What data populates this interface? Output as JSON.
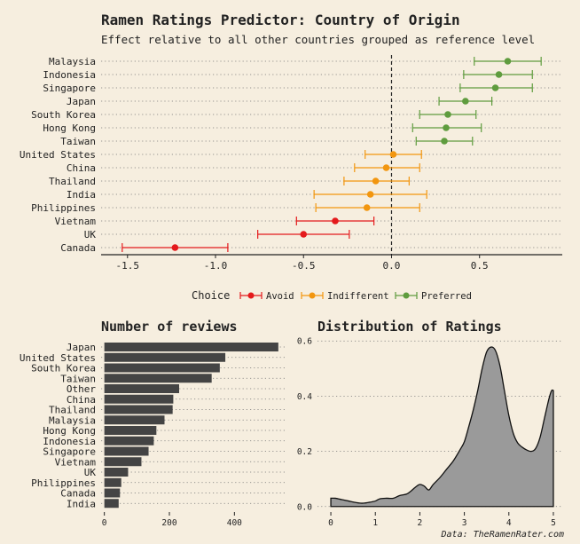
{
  "chart_data": [
    {
      "type": "scatter",
      "subtype": "point-range (forest plot)",
      "title": "Ramen Ratings Predictor: Country of Origin",
      "subtitle": "Effect relative to all other countries grouped as reference level",
      "xlabel": "",
      "ylabel": "",
      "xlim": [
        -1.65,
        0.97
      ],
      "x_ticks": [
        "-1.5",
        "-1.0",
        "-0.5",
        "0.0",
        "0.5"
      ],
      "reference_line": 0.0,
      "legend_title": "Choice",
      "legend_position": "bottom",
      "colors": {
        "Avoid": "#e41a1c",
        "Indifferent": "#f2960f",
        "Preferred": "#5f9c3e"
      },
      "series": [
        {
          "name": "Avoid",
          "points": [
            {
              "label": "Vietnam",
              "estimate": -0.32,
              "low": -0.54,
              "high": -0.1
            },
            {
              "label": "UK",
              "estimate": -0.5,
              "low": -0.76,
              "high": -0.24
            },
            {
              "label": "Canada",
              "estimate": -1.23,
              "low": -1.53,
              "high": -0.93
            }
          ]
        },
        {
          "name": "Indifferent",
          "points": [
            {
              "label": "United States",
              "estimate": 0.01,
              "low": -0.15,
              "high": 0.17
            },
            {
              "label": "China",
              "estimate": -0.03,
              "low": -0.21,
              "high": 0.16
            },
            {
              "label": "Thailand",
              "estimate": -0.09,
              "low": -0.27,
              "high": 0.1
            },
            {
              "label": "India",
              "estimate": -0.12,
              "low": -0.44,
              "high": 0.2
            },
            {
              "label": "Philippines",
              "estimate": -0.14,
              "low": -0.43,
              "high": 0.16
            }
          ]
        },
        {
          "name": "Preferred",
          "points": [
            {
              "label": "Malaysia",
              "estimate": 0.66,
              "low": 0.47,
              "high": 0.85
            },
            {
              "label": "Indonesia",
              "estimate": 0.61,
              "low": 0.41,
              "high": 0.8
            },
            {
              "label": "Singapore",
              "estimate": 0.59,
              "low": 0.39,
              "high": 0.8
            },
            {
              "label": "Japan",
              "estimate": 0.42,
              "low": 0.27,
              "high": 0.57
            },
            {
              "label": "South Korea",
              "estimate": 0.32,
              "low": 0.16,
              "high": 0.48
            },
            {
              "label": "Hong Kong",
              "estimate": 0.31,
              "low": 0.12,
              "high": 0.51
            },
            {
              "label": "Taiwan",
              "estimate": 0.3,
              "low": 0.14,
              "high": 0.46
            }
          ]
        }
      ],
      "category_order": [
        "Malaysia",
        "Indonesia",
        "Singapore",
        "Japan",
        "South Korea",
        "Hong Kong",
        "Taiwan",
        "United States",
        "China",
        "Thailand",
        "India",
        "Philippines",
        "Vietnam",
        "UK",
        "Canada"
      ],
      "grid": "horizontal dotted"
    },
    {
      "type": "bar",
      "orientation": "horizontal",
      "title": "Number of reviews",
      "xlabel": "",
      "ylabel": "",
      "xlim": [
        -10,
        560
      ],
      "x_ticks": [
        "0",
        "200",
        "400"
      ],
      "bar_color": "#444444",
      "categories": [
        "Japan",
        "United States",
        "South Korea",
        "Taiwan",
        "Other",
        "China",
        "Thailand",
        "Malaysia",
        "Hong Kong",
        "Indonesia",
        "Singapore",
        "Vietnam",
        "UK",
        "Philippines",
        "Canada",
        "India"
      ],
      "values": [
        535,
        372,
        355,
        330,
        230,
        212,
        210,
        185,
        160,
        152,
        136,
        114,
        73,
        52,
        48,
        44
      ],
      "grid": "horizontal dotted"
    },
    {
      "type": "area",
      "subtype": "density",
      "title": "Distribution of Ratings",
      "xlabel": "",
      "ylabel": "",
      "xlim": [
        -0.3,
        5.2
      ],
      "ylim": [
        -0.02,
        0.62
      ],
      "x_ticks": [
        "0",
        "1",
        "2",
        "3",
        "4",
        "5"
      ],
      "y_ticks": [
        "0.0",
        "0.2",
        "0.4",
        "0.6"
      ],
      "fill_color": "#9a9a9a",
      "x": [
        0,
        0.1,
        0.25,
        0.4,
        0.55,
        0.7,
        0.85,
        1.0,
        1.1,
        1.25,
        1.4,
        1.55,
        1.7,
        1.8,
        1.9,
        2.0,
        2.1,
        2.2,
        2.3,
        2.45,
        2.6,
        2.75,
        2.9,
        3.0,
        3.1,
        3.2,
        3.3,
        3.4,
        3.5,
        3.6,
        3.7,
        3.8,
        3.9,
        4.0,
        4.1,
        4.2,
        4.3,
        4.4,
        4.5,
        4.6,
        4.7,
        4.8,
        4.9,
        4.96,
        5.0
      ],
      "y": [
        0.03,
        0.03,
        0.025,
        0.02,
        0.015,
        0.012,
        0.015,
        0.02,
        0.028,
        0.03,
        0.03,
        0.04,
        0.045,
        0.056,
        0.07,
        0.08,
        0.074,
        0.06,
        0.08,
        0.105,
        0.135,
        0.165,
        0.205,
        0.235,
        0.29,
        0.35,
        0.42,
        0.5,
        0.56,
        0.578,
        0.565,
        0.51,
        0.42,
        0.33,
        0.265,
        0.23,
        0.215,
        0.205,
        0.2,
        0.21,
        0.25,
        0.32,
        0.39,
        0.42,
        0.42
      ],
      "grid": "horizontal dotted"
    }
  ],
  "caption": "Data: TheRamenRater.com"
}
